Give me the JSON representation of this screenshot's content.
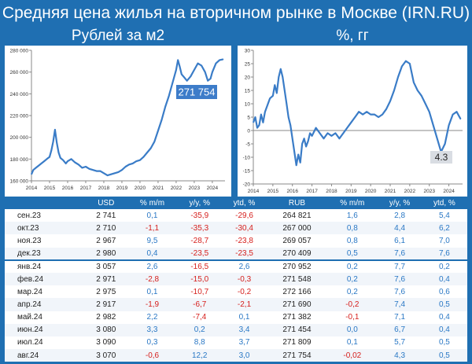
{
  "title": "Средняя цена жилья на вторичном рынке в Москве (IRN.RU)",
  "left_panel": {
    "subtitle": "Рублей за м2",
    "last_value_label": "271 754"
  },
  "right_panel": {
    "subtitle": "%, гг",
    "last_value_label": "4.3"
  },
  "chart_data": [
    {
      "type": "line",
      "title": "Рублей за м2",
      "ylim": [
        160000,
        280000
      ],
      "yticks": [
        "160 000",
        "180 000",
        "200 000",
        "220 000",
        "240 000",
        "260 000",
        "280 000"
      ],
      "xticks": [
        "2014",
        "2015",
        "2016",
        "2017",
        "2018",
        "2019",
        "2020",
        "2021",
        "2022",
        "2023",
        "2024"
      ],
      "x": [
        2014.0,
        2014.1,
        2014.25,
        2014.4,
        2014.55,
        2014.7,
        2014.85,
        2015.0,
        2015.1,
        2015.2,
        2015.3,
        2015.4,
        2015.5,
        2015.6,
        2015.75,
        2015.9,
        2016.0,
        2016.2,
        2016.4,
        2016.6,
        2016.8,
        2017.0,
        2017.2,
        2017.4,
        2017.6,
        2017.8,
        2018.0,
        2018.2,
        2018.4,
        2018.6,
        2018.8,
        2019.0,
        2019.2,
        2019.4,
        2019.6,
        2019.8,
        2020.0,
        2020.2,
        2020.4,
        2020.6,
        2020.8,
        2021.0,
        2021.2,
        2021.4,
        2021.6,
        2021.8,
        2022.0,
        2022.1,
        2022.2,
        2022.3,
        2022.45,
        2022.6,
        2022.8,
        2023.0,
        2023.2,
        2023.4,
        2023.6,
        2023.75,
        2023.9,
        2024.0,
        2024.2,
        2024.4,
        2024.6
      ],
      "y": [
        166000,
        170000,
        172000,
        174000,
        176000,
        178000,
        180000,
        182000,
        188000,
        196000,
        207000,
        195000,
        186000,
        181000,
        179000,
        176000,
        178000,
        180000,
        177000,
        175000,
        172000,
        173000,
        171000,
        170000,
        169000,
        169000,
        167000,
        165000,
        166000,
        167000,
        168000,
        170000,
        173000,
        175000,
        176000,
        178000,
        179000,
        182000,
        186000,
        190000,
        196000,
        206000,
        216000,
        228000,
        238000,
        250000,
        262000,
        271000,
        265000,
        258000,
        255000,
        252000,
        256000,
        262000,
        268000,
        266000,
        260000,
        252000,
        254000,
        260000,
        268000,
        271000,
        271754
      ]
    },
    {
      "type": "line",
      "title": "%, гг",
      "ylim": [
        -20,
        30
      ],
      "yticks": [
        "-20",
        "-15",
        "-10",
        "-5",
        "0",
        "5",
        "10",
        "15",
        "20",
        "25",
        "30"
      ],
      "xticks": [
        "2014",
        "2015",
        "2016",
        "2017",
        "2018",
        "2019",
        "2020",
        "2021",
        "2022",
        "2023",
        "2024"
      ],
      "x": [
        2014.0,
        2014.1,
        2014.2,
        2014.3,
        2014.4,
        2014.5,
        2014.6,
        2014.7,
        2014.85,
        2015.0,
        2015.1,
        2015.2,
        2015.3,
        2015.4,
        2015.5,
        2015.6,
        2015.7,
        2015.8,
        2015.9,
        2016.0,
        2016.1,
        2016.2,
        2016.3,
        2016.4,
        2016.5,
        2016.6,
        2016.7,
        2016.8,
        2016.9,
        2017.0,
        2017.2,
        2017.4,
        2017.6,
        2017.8,
        2018.0,
        2018.2,
        2018.4,
        2018.6,
        2018.8,
        2019.0,
        2019.2,
        2019.4,
        2019.6,
        2019.8,
        2020.0,
        2020.2,
        2020.4,
        2020.6,
        2020.8,
        2021.0,
        2021.2,
        2021.4,
        2021.6,
        2021.8,
        2022.0,
        2022.2,
        2022.4,
        2022.6,
        2022.8,
        2023.0,
        2023.2,
        2023.4,
        2023.6,
        2023.8,
        2024.0,
        2024.2,
        2024.4,
        2024.6
      ],
      "y": [
        3,
        5,
        1,
        2,
        6,
        3,
        7,
        9,
        12,
        13,
        17,
        14,
        20,
        23,
        20,
        15,
        10,
        5,
        2,
        -3,
        -8,
        -13,
        -9,
        -12,
        -5,
        -3,
        -6,
        -4,
        -1,
        -2,
        1,
        -1,
        -3,
        -1,
        -2,
        -1,
        -3,
        -1,
        1,
        3,
        5,
        7,
        6,
        7,
        6,
        6,
        5,
        6,
        8,
        11,
        15,
        20,
        24,
        26,
        25,
        18,
        15,
        13,
        10,
        7,
        2,
        -3,
        -8,
        -5,
        2,
        6,
        7,
        4.3
      ]
    }
  ],
  "table": {
    "headers": [
      "",
      "USD",
      "% m/m",
      "y/y, %",
      "ytd, %",
      "RUB",
      "% m/m",
      "y/y, %",
      "ytd, %"
    ],
    "rows": [
      [
        "сен.23",
        "2 741",
        "0,1",
        "-35,9",
        "-29,6",
        "264 821",
        "1,6",
        "2,8",
        "5,4"
      ],
      [
        "окт.23",
        "2 710",
        "-1,1",
        "-35,3",
        "-30,4",
        "267 000",
        "0,8",
        "4,4",
        "6,2"
      ],
      [
        "ноя.23",
        "2 967",
        "9,5",
        "-28,7",
        "-23,8",
        "269 057",
        "0,8",
        "6,1",
        "7,0"
      ],
      [
        "дек.23",
        "2 980",
        "0,4",
        "-23,5",
        "-23,5",
        "270 409",
        "0,5",
        "7,6",
        "7,6"
      ],
      [
        "янв.24",
        "3 057",
        "2,6",
        "-16,5",
        "2,6",
        "270 952",
        "0,2",
        "7,7",
        "0,2"
      ],
      [
        "фев.24",
        "2 971",
        "-2,8",
        "-15,0",
        "-0,3",
        "271 548",
        "0,2",
        "7,6",
        "0,4"
      ],
      [
        "мар.24",
        "2 975",
        "0,1",
        "-10,7",
        "-0,2",
        "272 166",
        "0,2",
        "7,6",
        "0,6"
      ],
      [
        "апр.24",
        "2 917",
        "-1,9",
        "-6,7",
        "-2,1",
        "271 690",
        "-0,2",
        "7,4",
        "0,5"
      ],
      [
        "май.24",
        "2 982",
        "2,2",
        "-7,4",
        "0,1",
        "271 382",
        "-0,1",
        "7,1",
        "0,4"
      ],
      [
        "июн.24",
        "3 080",
        "3,3",
        "0,2",
        "3,4",
        "271 454",
        "0,0",
        "6,7",
        "0,4"
      ],
      [
        "июл.24",
        "3 090",
        "0,3",
        "8,8",
        "3,7",
        "271 809",
        "0,1",
        "5,7",
        "0,5"
      ],
      [
        "авг.24",
        "3 070",
        "-0,6",
        "12,2",
        "3,0",
        "271 754",
        "-0,02",
        "4,3",
        "0,5"
      ]
    ]
  }
}
